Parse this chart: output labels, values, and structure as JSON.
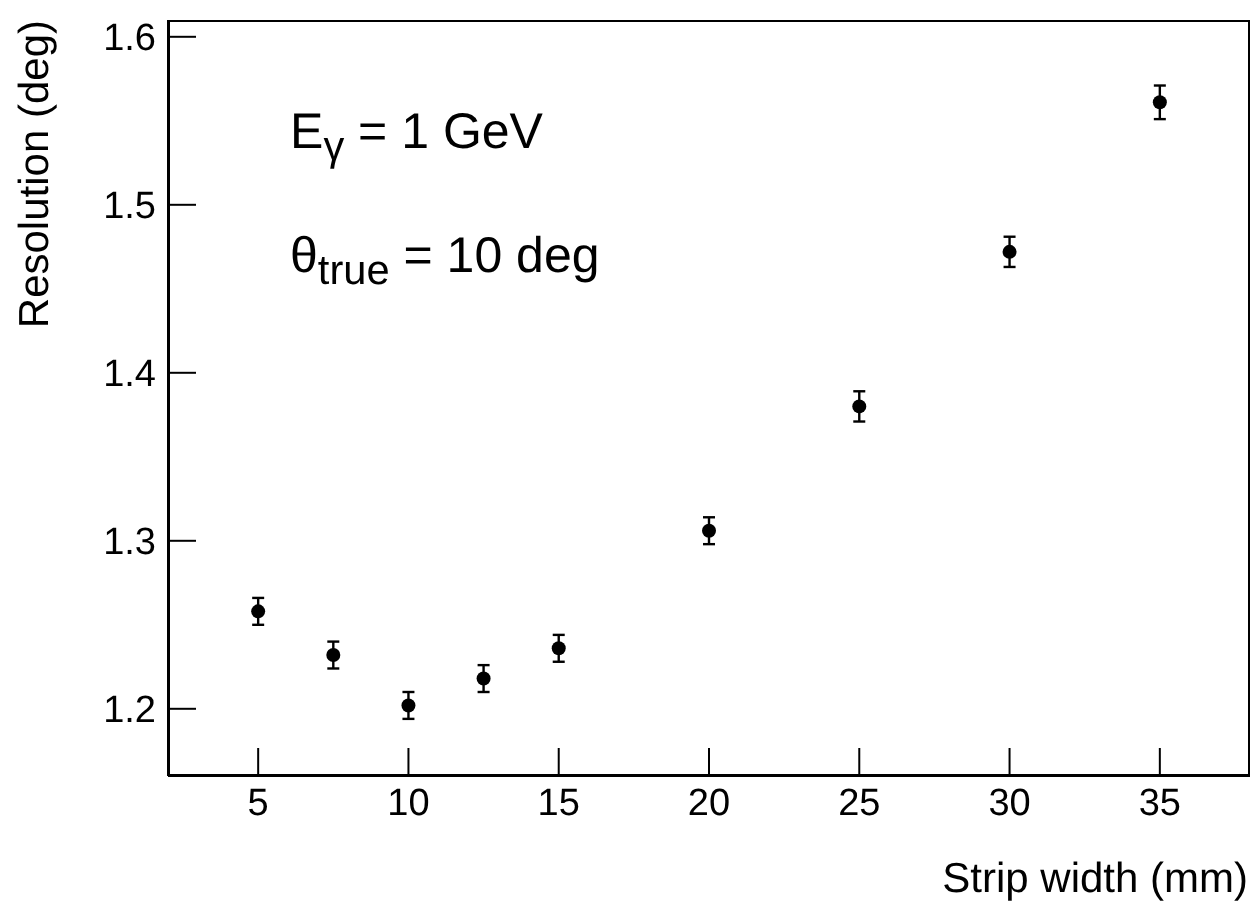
{
  "chart_data": {
    "type": "scatter",
    "xlabel": "Strip width (mm)",
    "ylabel": "Resolution (deg)",
    "x": [
      5,
      7.5,
      10,
      12.5,
      15,
      20,
      25,
      30,
      35
    ],
    "values": [
      1.258,
      1.232,
      1.202,
      1.218,
      1.236,
      1.306,
      1.38,
      1.472,
      1.561
    ],
    "errors": [
      0.008,
      0.008,
      0.008,
      0.008,
      0.008,
      0.008,
      0.009,
      0.009,
      0.01
    ],
    "color": "#000000",
    "marker": "circle",
    "xlim": [
      2,
      38
    ],
    "xticks": [
      5,
      10,
      15,
      20,
      25,
      30,
      35
    ],
    "ylim": [
      1.16,
      1.61
    ],
    "yticks": [
      1.2,
      1.3,
      1.4,
      1.5,
      1.6
    ],
    "grid": false,
    "annotations": [
      "E$_{γ}$ = 1 GeV",
      "θ$_{true}$ = 10 deg"
    ]
  }
}
